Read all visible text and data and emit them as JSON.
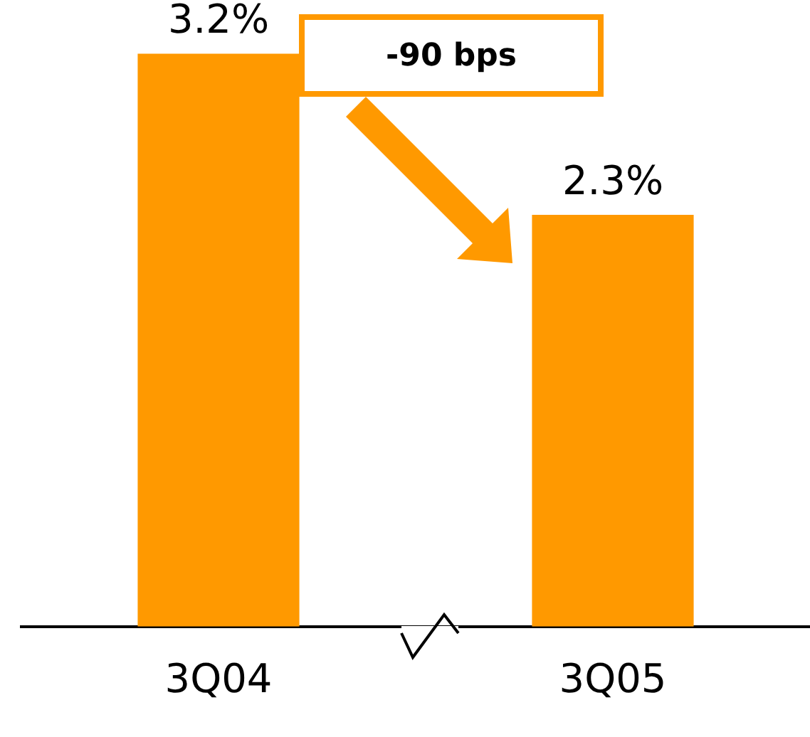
{
  "chart_data": {
    "type": "bar",
    "categories": [
      "3Q04",
      "3Q05"
    ],
    "values": [
      3.2,
      2.3
    ],
    "color": "#ff9900",
    "value_labels": [
      "3.2%",
      "2.3%"
    ],
    "tick_labels": "x",
    "grid": false,
    "legend": false,
    "annotations": [
      "-90 bps"
    ]
  }
}
